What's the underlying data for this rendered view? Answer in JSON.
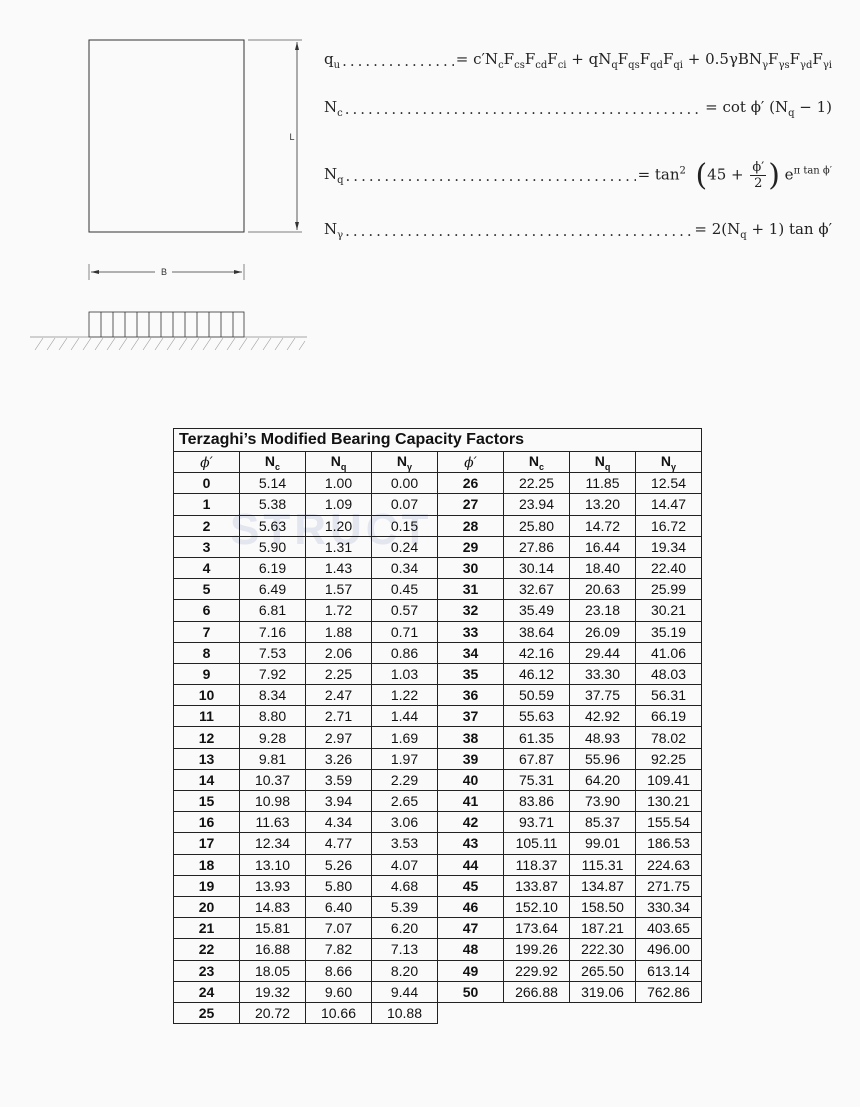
{
  "diagram": {
    "length_label": "L",
    "width_label": "B"
  },
  "formulas": [
    {
      "lhs": "q",
      "lhs_sub": "u",
      "rhs": [
        [
          "= c′N",
          ""
        ],
        [
          "c",
          "sub"
        ],
        [
          "F",
          ""
        ],
        [
          "cs",
          "sub"
        ],
        [
          "F",
          ""
        ],
        [
          "cd",
          "sub"
        ],
        [
          "F",
          ""
        ],
        [
          "ci",
          "sub"
        ],
        [
          " + qN",
          ""
        ],
        [
          "q",
          "sub"
        ],
        [
          "F",
          ""
        ],
        [
          "qs",
          "sub"
        ],
        [
          "F",
          ""
        ],
        [
          "qd",
          "sub"
        ],
        [
          "F",
          ""
        ],
        [
          "qi",
          "sub"
        ],
        [
          " + 0.5γBN",
          ""
        ],
        [
          "γ",
          "sub"
        ],
        [
          "F",
          ""
        ],
        [
          "γs",
          "sub"
        ],
        [
          "F",
          ""
        ],
        [
          "γd",
          "sub"
        ],
        [
          "F",
          ""
        ],
        [
          "γi",
          "sub"
        ]
      ]
    },
    {
      "lhs": "N",
      "lhs_sub": "c",
      "rhs": [
        [
          "= cot ϕ′ (N",
          ""
        ],
        [
          "q",
          "sub"
        ],
        [
          " − 1)",
          ""
        ]
      ]
    },
    {
      "lhs": "N",
      "lhs_sub": "q",
      "rhs": [
        [
          "= tan",
          ""
        ],
        [
          "2",
          "sup"
        ],
        [
          " (",
          "big"
        ],
        [
          "45 + ",
          ""
        ],
        [
          "ϕ′|2",
          "frac"
        ],
        [
          ")",
          "big"
        ],
        [
          " e",
          ""
        ],
        [
          "π tan ϕ′",
          "sup"
        ]
      ]
    },
    {
      "lhs": "N",
      "lhs_sub": "γ",
      "rhs": [
        [
          "= 2(N",
          ""
        ],
        [
          "q",
          "sub"
        ],
        [
          " + 1) tan ϕ′",
          ""
        ]
      ]
    }
  ],
  "watermark": "STRUCT",
  "table": {
    "title": "Terzaghi’s Modified Bearing Capacity Factors",
    "headers": [
      [
        "ϕ′",
        ""
      ],
      [
        "N",
        "c"
      ],
      [
        "N",
        "q"
      ],
      [
        "N",
        "γ"
      ],
      [
        "ϕ′",
        ""
      ],
      [
        "N",
        "c"
      ],
      [
        "N",
        "q"
      ],
      [
        "N",
        "γ"
      ]
    ],
    "rows": [
      [
        "0",
        "5.14",
        "1.00",
        "0.00"
      ],
      [
        "1",
        "5.38",
        "1.09",
        "0.07"
      ],
      [
        "2",
        "5.63",
        "1.20",
        "0.15"
      ],
      [
        "3",
        "5.90",
        "1.31",
        "0.24"
      ],
      [
        "4",
        "6.19",
        "1.43",
        "0.34"
      ],
      [
        "5",
        "6.49",
        "1.57",
        "0.45"
      ],
      [
        "6",
        "6.81",
        "1.72",
        "0.57"
      ],
      [
        "7",
        "7.16",
        "1.88",
        "0.71"
      ],
      [
        "8",
        "7.53",
        "2.06",
        "0.86"
      ],
      [
        "9",
        "7.92",
        "2.25",
        "1.03"
      ],
      [
        "10",
        "8.34",
        "2.47",
        "1.22"
      ],
      [
        "11",
        "8.80",
        "2.71",
        "1.44"
      ],
      [
        "12",
        "9.28",
        "2.97",
        "1.69"
      ],
      [
        "13",
        "9.81",
        "3.26",
        "1.97"
      ],
      [
        "14",
        "10.37",
        "3.59",
        "2.29"
      ],
      [
        "15",
        "10.98",
        "3.94",
        "2.65"
      ],
      [
        "16",
        "11.63",
        "4.34",
        "3.06"
      ],
      [
        "17",
        "12.34",
        "4.77",
        "3.53"
      ],
      [
        "18",
        "13.10",
        "5.26",
        "4.07"
      ],
      [
        "19",
        "13.93",
        "5.80",
        "4.68"
      ],
      [
        "20",
        "14.83",
        "6.40",
        "5.39"
      ],
      [
        "21",
        "15.81",
        "7.07",
        "6.20"
      ],
      [
        "22",
        "16.88",
        "7.82",
        "7.13"
      ],
      [
        "23",
        "18.05",
        "8.66",
        "8.20"
      ],
      [
        "24",
        "19.32",
        "9.60",
        "9.44"
      ],
      [
        "25",
        "20.72",
        "10.66",
        "10.88"
      ],
      [
        "26",
        "22.25",
        "11.85",
        "12.54"
      ],
      [
        "27",
        "23.94",
        "13.20",
        "14.47"
      ],
      [
        "28",
        "25.80",
        "14.72",
        "16.72"
      ],
      [
        "29",
        "27.86",
        "16.44",
        "19.34"
      ],
      [
        "30",
        "30.14",
        "18.40",
        "22.40"
      ],
      [
        "31",
        "32.67",
        "20.63",
        "25.99"
      ],
      [
        "32",
        "35.49",
        "23.18",
        "30.21"
      ],
      [
        "33",
        "38.64",
        "26.09",
        "35.19"
      ],
      [
        "34",
        "42.16",
        "29.44",
        "41.06"
      ],
      [
        "35",
        "46.12",
        "33.30",
        "48.03"
      ],
      [
        "36",
        "50.59",
        "37.75",
        "56.31"
      ],
      [
        "37",
        "55.63",
        "42.92",
        "66.19"
      ],
      [
        "38",
        "61.35",
        "48.93",
        "78.02"
      ],
      [
        "39",
        "67.87",
        "55.96",
        "92.25"
      ],
      [
        "40",
        "75.31",
        "64.20",
        "109.41"
      ],
      [
        "41",
        "83.86",
        "73.90",
        "130.21"
      ],
      [
        "42",
        "93.71",
        "85.37",
        "155.54"
      ],
      [
        "43",
        "105.11",
        "99.01",
        "186.53"
      ],
      [
        "44",
        "118.37",
        "115.31",
        "224.63"
      ],
      [
        "45",
        "133.87",
        "134.87",
        "271.75"
      ],
      [
        "46",
        "152.10",
        "158.50",
        "330.34"
      ],
      [
        "47",
        "173.64",
        "187.21",
        "403.65"
      ],
      [
        "48",
        "199.26",
        "222.30",
        "496.00"
      ],
      [
        "49",
        "229.92",
        "265.50",
        "613.14"
      ],
      [
        "50",
        "266.88",
        "319.06",
        "762.86"
      ]
    ]
  }
}
